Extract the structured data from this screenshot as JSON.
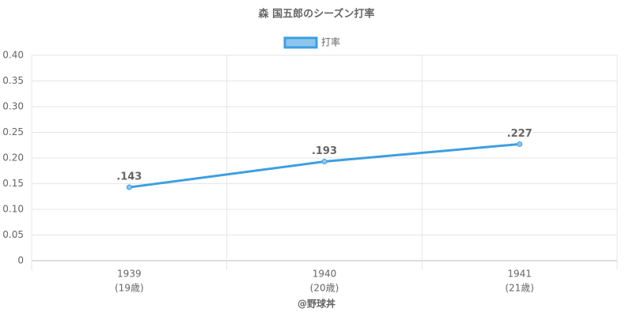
{
  "chart_data": {
    "type": "line",
    "title": "森 国五郎のシーズン打率",
    "categories": [
      "1939",
      "1940",
      "1941"
    ],
    "category_sublabels": [
      "(19歳)",
      "(20歳)",
      "(21歳)"
    ],
    "series": [
      {
        "name": "打率",
        "color": "#3e9fe0",
        "values": [
          0.143,
          0.193,
          0.227
        ],
        "value_labels": [
          ".143",
          ".193",
          ".227"
        ]
      }
    ],
    "ylim": [
      0,
      0.4
    ],
    "yticks": [
      0,
      0.05,
      {
        "value": 0.1,
        "label": "0.10"
      },
      0.15,
      {
        "value": 0.2,
        "label": "0.20"
      },
      0.25,
      {
        "value": 0.3,
        "label": "0.30"
      },
      0.35,
      {
        "value": 0.4,
        "label": "0.40"
      }
    ],
    "grid": true,
    "legend": "top",
    "credit": "@野球丼"
  }
}
